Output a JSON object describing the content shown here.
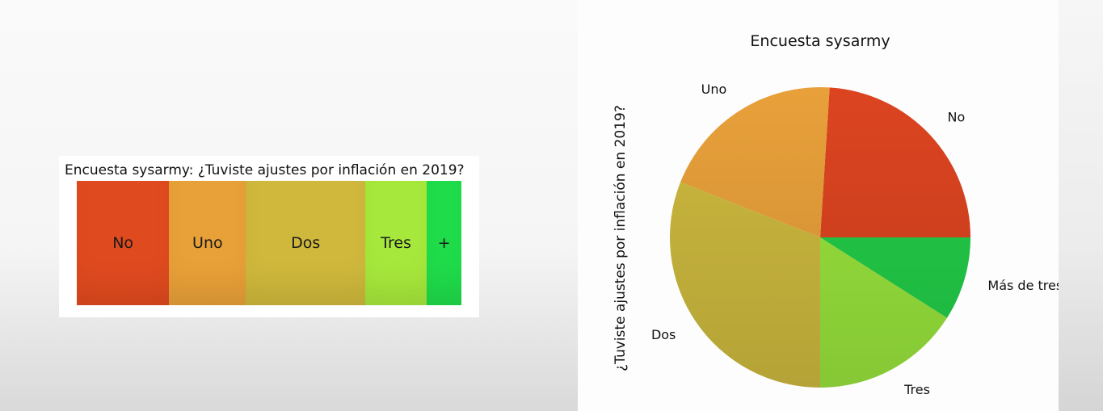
{
  "chart_data": [
    {
      "type": "bar",
      "orientation": "stacked-horizontal",
      "title": "Encuesta sysarmy: ¿Tuviste ajustes por inflación en 2019?",
      "categories": [
        "No",
        "Uno",
        "Dos",
        "Tres",
        "Más de tres"
      ],
      "labels": [
        "No",
        "Uno",
        "Dos",
        "Tres",
        "+"
      ],
      "values": [
        24,
        20,
        31,
        16,
        9
      ],
      "colors": [
        "#e04a1f",
        "#e8a038",
        "#cfb83c",
        "#a6e83b",
        "#1fdc4a"
      ]
    },
    {
      "type": "pie",
      "title": "Encuesta sysarmy",
      "ylabel": "¿Tuviste ajustes por inflación en 2019?",
      "categories": [
        "No",
        "Uno",
        "Dos",
        "Tres",
        "Más de tres"
      ],
      "values": [
        24,
        20,
        31,
        16,
        9
      ],
      "start_angle_deg": 0,
      "direction": "counterclockwise",
      "colors": [
        "#dc4420",
        "#e8a03a",
        "#cdb93e",
        "#98e33c",
        "#22cc48"
      ]
    }
  ]
}
